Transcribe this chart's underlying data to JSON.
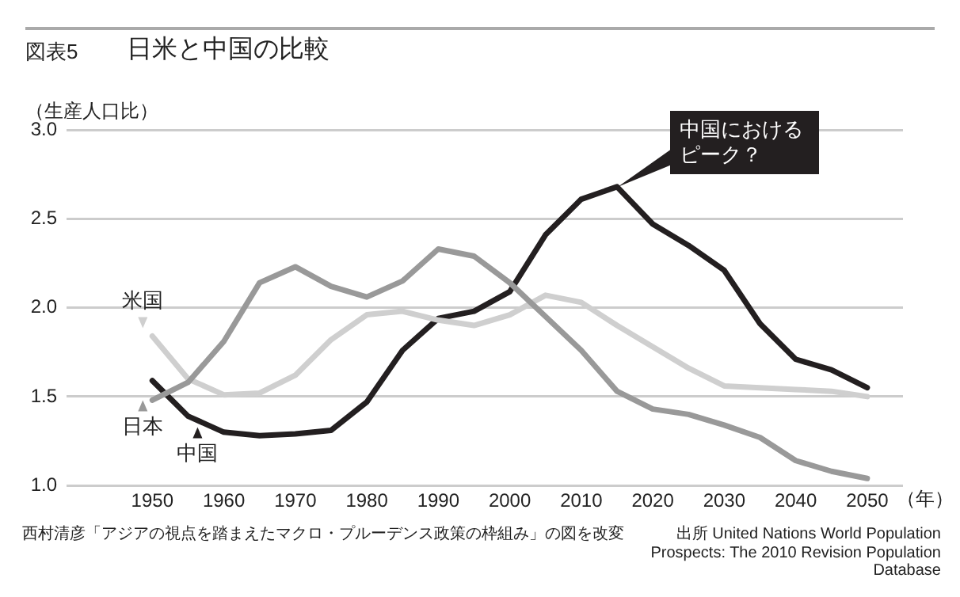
{
  "chart_data": {
    "type": "line",
    "title": "日米と中国の比較",
    "ylabel": "（生産人口比）",
    "xlabel": "（年）",
    "x": [
      1950,
      1955,
      1960,
      1965,
      1970,
      1975,
      1980,
      1985,
      1990,
      1995,
      2000,
      2005,
      2010,
      2015,
      2020,
      2025,
      2030,
      2035,
      2040,
      2045,
      2050
    ],
    "series": [
      {
        "name": "日本",
        "color": "#999999",
        "values": [
          1.48,
          1.58,
          1.81,
          2.14,
          2.23,
          2.12,
          2.06,
          2.15,
          2.33,
          2.29,
          2.14,
          1.95,
          1.76,
          1.53,
          1.43,
          1.4,
          1.34,
          1.27,
          1.14,
          1.08,
          1.04
        ]
      },
      {
        "name": "米国",
        "color": "#cfcfcf",
        "values": [
          1.84,
          1.6,
          1.51,
          1.52,
          1.62,
          1.82,
          1.96,
          1.98,
          1.93,
          1.9,
          1.96,
          2.07,
          2.03,
          1.9,
          1.78,
          1.66,
          1.56,
          1.55,
          1.54,
          1.53,
          1.5
        ]
      },
      {
        "name": "中国",
        "color": "#231f20",
        "values": [
          1.59,
          1.39,
          1.3,
          1.28,
          1.29,
          1.31,
          1.47,
          1.76,
          1.94,
          1.98,
          2.09,
          2.41,
          2.61,
          2.68,
          2.47,
          2.35,
          2.21,
          1.91,
          1.71,
          1.65,
          1.55
        ]
      }
    ],
    "xlim": [
      1938,
      2055
    ],
    "xticks": [
      1950,
      1960,
      1970,
      1980,
      1990,
      2000,
      2010,
      2020,
      2030,
      2040,
      2050
    ],
    "ylim": [
      1.0,
      3.0
    ],
    "yticks": [
      {
        "value": 1.0,
        "label": "1.0"
      },
      {
        "value": 1.5,
        "label": "1.5"
      },
      {
        "value": 2.0,
        "label": "2.0"
      },
      {
        "value": 2.5,
        "label": "2.5"
      },
      {
        "value": 3.0,
        "label": "3.0"
      }
    ],
    "grid": "y",
    "legend": "left",
    "marker": "none",
    "line_style": "solid",
    "annotations": [
      "図表5",
      "中国におけるピーク？",
      "西村清彦「アジアの視点を踏まえたマクロ・プルーデンス政策の枠組み」の図を改変",
      "出所 United Nations World Population Prospects: The 2010 Revision Population Database"
    ]
  }
}
